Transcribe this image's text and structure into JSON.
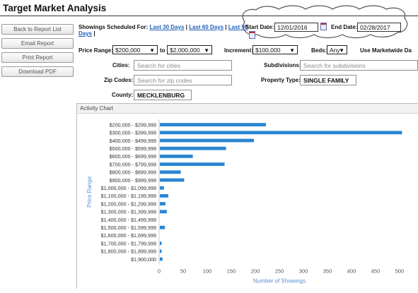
{
  "page": {
    "title": "Target Market Analysis"
  },
  "sidebar": {
    "back": "Back to Report List",
    "email": "Email Report",
    "print": "Print Report",
    "download": "Download PDF"
  },
  "showings": {
    "label": "Showings Scheduled For:",
    "link30": "Last 30 Days",
    "link60": "Last 60 Days",
    "link90a": "Last 90",
    "link90b": "Days",
    "sep": "|"
  },
  "dates": {
    "start_label": "Start Date:",
    "start_value": "12/01/2016",
    "end_label": "End Date:",
    "end_value": "02/28/2017"
  },
  "filters": {
    "price_label": "Price Range:",
    "price_from": "$200,000",
    "to_label": "to",
    "price_to": "$2,000,000",
    "increment_label": "Increment:",
    "increment_value": "$100,000",
    "beds_label": "Beds:",
    "beds_value": "Any",
    "marketwide_label": "Use Marketwide Da"
  },
  "fields": {
    "cities_label": "Cities:",
    "cities_placeholder": "Search for cities",
    "zip_label": "Zip Codes:",
    "zip_placeholder": "Search for zip codes",
    "county_label": "County:",
    "county_value": "MECKLENBURG",
    "subdivisions_label": "Subdivisions:",
    "subdivisions_placeholder": "Search for subdivisions",
    "property_type_label": "Property Type:",
    "property_type_value": "SINGLE FAMILY"
  },
  "chart_panel": {
    "title": "Activity Chart"
  },
  "chart_data": {
    "type": "bar",
    "orientation": "horizontal",
    "xlabel": "Number of Showings",
    "ylabel": "Price Range",
    "xlim": [
      0,
      500
    ],
    "xticks": [
      0,
      50,
      100,
      150,
      200,
      250,
      300,
      350,
      400,
      450,
      500
    ],
    "color": "#2a86d2",
    "categories": [
      "$200,000 - $299,999",
      "$300,000 - $399,999",
      "$400,000 - $499,999",
      "$500,000 - $599,999",
      "$600,000 - $699,999",
      "$700,000 - $799,999",
      "$800,000 - $899,999",
      "$900,000 - $999,999",
      "$1,000,000 - $1,099,999",
      "$1,100,000 - $1,199,999",
      "$1,200,000 - $1,299,999",
      "$1,300,000 - $1,399,999",
      "$1,400,000 - $1,499,999",
      "$1,500,000 - $1,599,999",
      "$1,600,000 - $1,699,999",
      "$1,700,000 - $1,799,999",
      "$1,800,000 - $1,899,999",
      "$1,900,000"
    ],
    "values": [
      222,
      505,
      197,
      139,
      70,
      136,
      45,
      52,
      10,
      19,
      13,
      16,
      0,
      12,
      0,
      5,
      5,
      7
    ]
  }
}
